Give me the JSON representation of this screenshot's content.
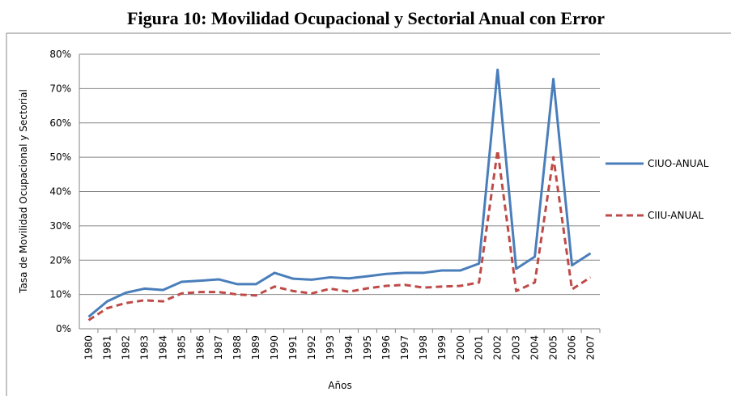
{
  "chart_data": {
    "type": "line",
    "title": "Figura 10: Movilidad Ocupacional y Sectorial Anual con Error",
    "x_label": "Años",
    "y_label": "Tasa de Movilidad Ocupacional y Sectorial",
    "categories": [
      "1980",
      "1981",
      "1982",
      "1983",
      "1984",
      "1985",
      "1986",
      "1987",
      "1988",
      "1989",
      "1990",
      "1991",
      "1992",
      "1993",
      "1994",
      "1995",
      "1996",
      "1997",
      "1998",
      "1999",
      "2000",
      "2001",
      "2002",
      "2003",
      "2004",
      "2005",
      "2006",
      "2007"
    ],
    "series": [
      {
        "name": "CIUO-ANUAL",
        "color": "#4a7ebb",
        "dashed": false,
        "values": [
          3.5,
          8,
          10.5,
          11.7,
          11.3,
          13.7,
          14,
          14.4,
          13,
          13,
          16.3,
          14.6,
          14.3,
          15,
          14.7,
          15.3,
          16,
          16.3,
          16.3,
          17,
          17,
          19,
          75.5,
          17.5,
          21,
          72.8,
          18.5,
          22
        ]
      },
      {
        "name": "CIIU-ANUAL",
        "color": "#be4b48",
        "dashed": true,
        "values": [
          2.5,
          6,
          7.5,
          8.3,
          8,
          10.3,
          10.7,
          10.7,
          10,
          9.7,
          12.3,
          11,
          10.3,
          11.7,
          10.8,
          11.8,
          12.5,
          12.8,
          12,
          12.3,
          12.5,
          13.5,
          52,
          11,
          13.5,
          50,
          11.5,
          15
        ]
      }
    ],
    "ylim": [
      0,
      80
    ],
    "yticks": [
      {
        "value": 0,
        "label": "0%"
      },
      {
        "value": 10,
        "label": "10%"
      },
      {
        "value": 20,
        "label": "20%"
      },
      {
        "value": 30,
        "label": "30%"
      },
      {
        "value": 40,
        "label": "40%"
      },
      {
        "value": 50,
        "label": "50%"
      },
      {
        "value": 60,
        "label": "60%"
      },
      {
        "value": 70,
        "label": "70%"
      },
      {
        "value": 80,
        "label": "80%"
      }
    ],
    "grid": true,
    "legend": "right"
  }
}
